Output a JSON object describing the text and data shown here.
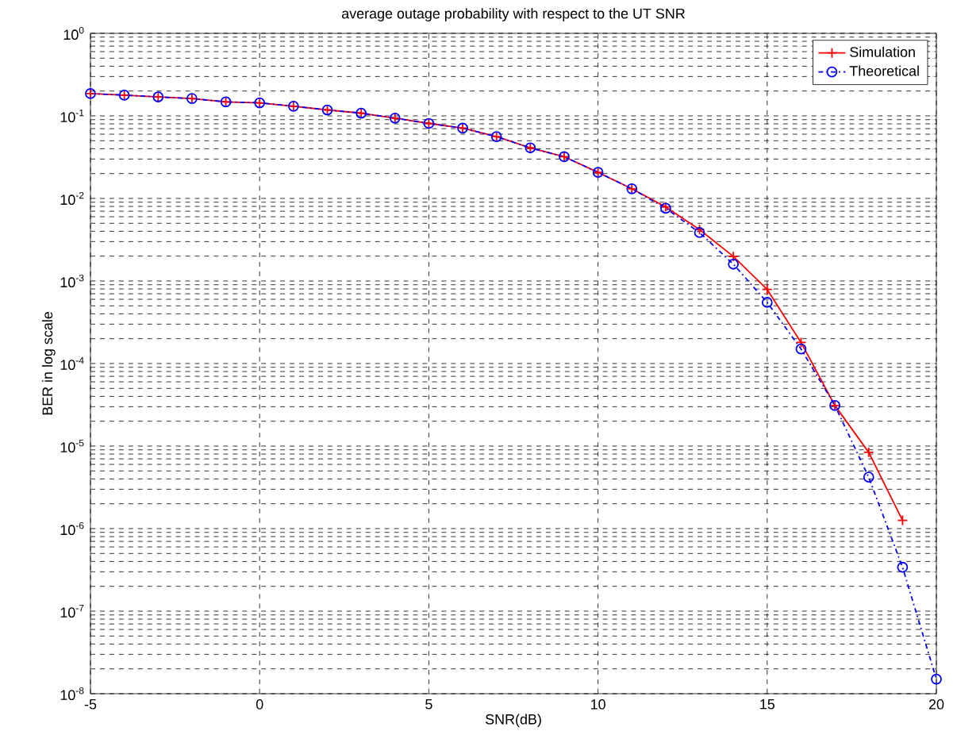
{
  "chart_data": {
    "type": "line",
    "title": "average outage probability with respect to the UT SNR",
    "xlabel": "SNR(dB)",
    "ylabel": "BER in log scale",
    "x": [
      -5,
      -4,
      -3,
      -2,
      -1,
      0,
      1,
      2,
      3,
      4,
      5,
      6,
      7,
      8,
      9,
      10,
      11,
      12,
      13,
      14,
      15,
      16,
      17,
      18,
      19,
      20
    ],
    "series": [
      {
        "name": "Simulation",
        "color": "#ff0000",
        "marker": "cross",
        "line_style": "solid",
        "values": [
          0.186,
          0.178,
          0.17,
          0.162,
          0.148,
          0.144,
          0.131,
          0.118,
          0.108,
          0.094,
          0.081,
          0.071,
          0.056,
          0.041,
          0.032,
          0.0207,
          0.0131,
          0.0079,
          0.0042,
          0.00198,
          0.00079,
          0.00018,
          3.1e-05,
          8.4e-06,
          1.26e-06,
          null
        ]
      },
      {
        "name": "Theoretical",
        "color": "#0000ff",
        "marker": "circle",
        "line_style": "dashdot",
        "values": [
          0.186,
          0.178,
          0.17,
          0.162,
          0.148,
          0.144,
          0.131,
          0.118,
          0.108,
          0.094,
          0.081,
          0.071,
          0.056,
          0.041,
          0.032,
          0.0207,
          0.0131,
          0.0076,
          0.00386,
          0.0016,
          0.00055,
          0.00015,
          3.1e-05,
          4.2e-06,
          3.4e-07,
          1.5e-08
        ]
      }
    ],
    "xlim": [
      -5,
      20
    ],
    "xticks": [
      -5,
      0,
      5,
      10,
      15,
      20
    ],
    "ylim": [
      1e-08,
      1
    ],
    "yticks": [
      {
        "value": 1e-08,
        "label": "10$^{-8}$"
      },
      {
        "value": 1e-07,
        "label": "10$^{-7}$"
      },
      {
        "value": 1e-06,
        "label": "10$^{-6}$"
      },
      {
        "value": 1e-05,
        "label": "10$^{-5}$"
      },
      {
        "value": 0.0001,
        "label": "10$^{-4}$"
      },
      {
        "value": 0.001,
        "label": "10$^{-3}$"
      },
      {
        "value": 0.01,
        "label": "10$^{-2}$"
      },
      {
        "value": 0.1,
        "label": "10$^{-1}$"
      },
      {
        "value": 1,
        "label": "10$^{0}$"
      }
    ],
    "log": "y",
    "grid": true,
    "legend": "top right"
  }
}
